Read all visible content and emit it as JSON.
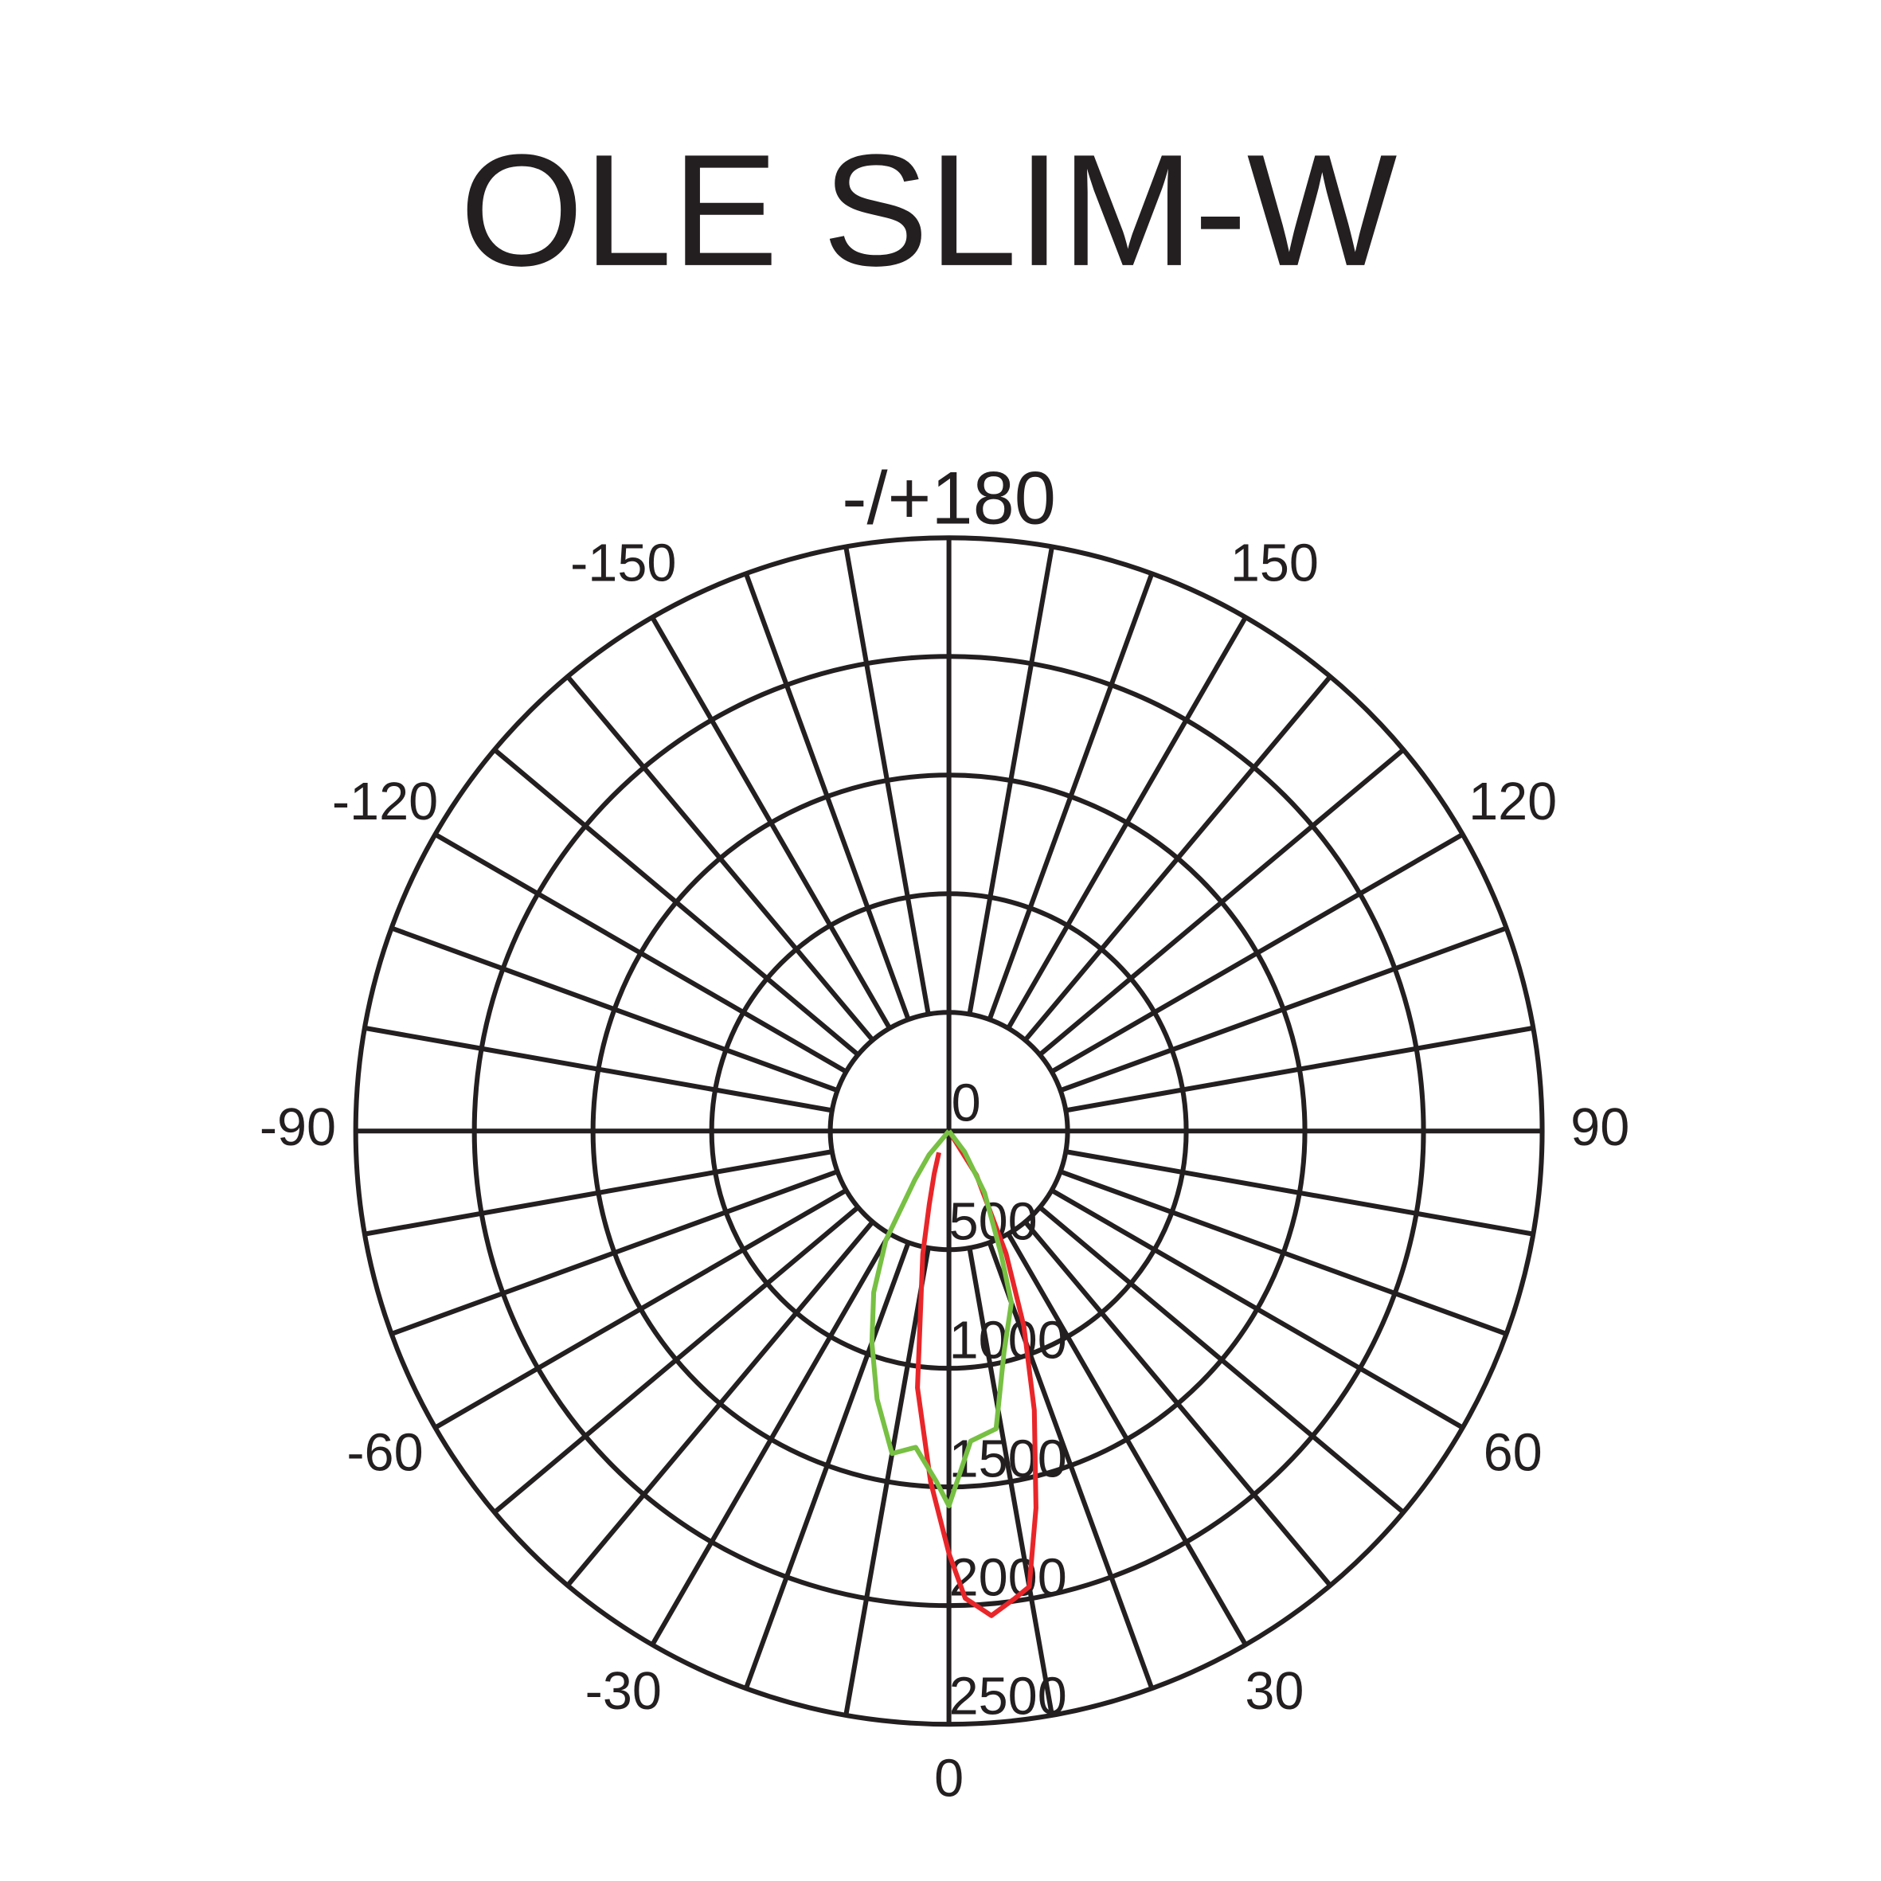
{
  "chart_data": {
    "type": "polar",
    "title": "OLE SLIM-W",
    "rlim": [
      0,
      2500
    ],
    "rticks": [
      0,
      500,
      1000,
      1500,
      2000,
      2500
    ],
    "xticks": [
      0,
      30,
      60,
      90,
      120,
      150,
      {
        "value": 180,
        "label": "-/+180"
      },
      -150,
      -120,
      -90,
      -60,
      -30
    ],
    "series": [
      {
        "color": "#e8262a",
        "x": [
          -25,
          -19,
          -15,
          -12,
          -7,
          -3,
          0,
          2,
          5,
          8,
          10,
          13,
          17,
          21,
          25,
          32,
          40
        ],
        "values": [
          100,
          190,
          320,
          530,
          1090,
          1480,
          1780,
          1970,
          2050,
          1990,
          1950,
          1630,
          1230,
          880,
          570,
          220,
          0
        ]
      },
      {
        "color": "#77c043",
        "x": [
          -45,
          -40,
          -35,
          -30,
          -25,
          -20,
          -15,
          -10,
          -6,
          -2,
          0,
          4,
          9,
          14,
          20,
          23,
          30,
          37,
          45
        ],
        "values": [
          0,
          130,
          250,
          530,
          750,
          950,
          1170,
          1380,
          1340,
          1480,
          1580,
          1310,
          1270,
          960,
          770,
          560,
          300,
          110,
          0
        ]
      }
    ]
  }
}
